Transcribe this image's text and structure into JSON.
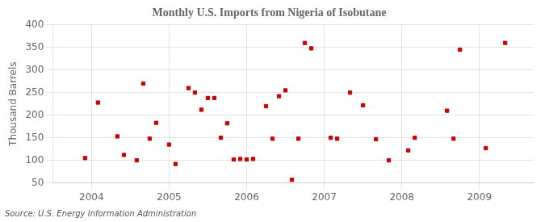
{
  "chart_data": {
    "type": "scatter",
    "title": "Monthly U.S. Imports from Nigeria of Isobutane",
    "ylabel": "Thousand Barrels",
    "annotations": [
      "Source: U.S. Energy Information Administration"
    ],
    "x": [
      2003.917,
      2004.083,
      2004.333,
      2004.417,
      2004.583,
      2004.667,
      2004.75,
      2004.833,
      2005.0,
      2005.083,
      2005.25,
      2005.333,
      2005.417,
      2005.5,
      2005.583,
      2005.667,
      2005.75,
      2005.833,
      2005.917,
      2006.0,
      2006.083,
      2006.25,
      2006.333,
      2006.417,
      2006.5,
      2006.583,
      2006.667,
      2006.75,
      2006.833,
      2007.083,
      2007.167,
      2007.333,
      2007.5,
      2007.667,
      2007.833,
      2008.083,
      2008.167,
      2008.583,
      2008.667,
      2008.75,
      2009.083,
      2009.333
    ],
    "values": [
      105,
      228,
      153,
      112,
      100,
      270,
      148,
      183,
      135,
      92,
      260,
      250,
      212,
      238,
      238,
      150,
      182,
      102,
      103,
      102,
      103,
      220,
      148,
      242,
      255,
      57,
      148,
      360,
      348,
      150,
      148,
      250,
      222,
      147,
      100,
      122,
      150,
      210,
      148,
      345,
      127,
      360
    ],
    "color": "#cc0000",
    "marker": "square",
    "xlim": [
      2003.5,
      2009.7
    ],
    "xticks": [
      2004,
      2005,
      2006,
      2007,
      2008,
      2009
    ],
    "ylim": [
      50,
      400
    ],
    "yticks": [
      50,
      100,
      150,
      200,
      250,
      300,
      350,
      400
    ],
    "grid": true
  }
}
